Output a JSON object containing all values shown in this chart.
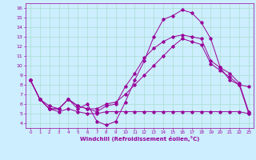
{
  "xlabel": "Windchill (Refroidissement éolien,°C)",
  "bg_color": "#cceeff",
  "grid_color": "#aaddcc",
  "line_color": "#990099",
  "xlim": [
    -0.5,
    23.5
  ],
  "ylim": [
    3.5,
    16.5
  ],
  "xticks": [
    0,
    1,
    2,
    3,
    4,
    5,
    6,
    7,
    8,
    9,
    10,
    11,
    12,
    13,
    14,
    15,
    16,
    17,
    18,
    19,
    20,
    21,
    22,
    23
  ],
  "yticks": [
    4,
    5,
    6,
    7,
    8,
    9,
    10,
    11,
    12,
    13,
    14,
    15,
    16
  ],
  "series": [
    {
      "x": [
        0,
        1,
        2,
        3,
        4,
        5,
        6,
        7,
        8,
        9,
        10,
        11,
        12,
        13,
        14,
        15,
        16,
        17,
        18,
        19,
        20,
        21,
        22,
        23
      ],
      "y": [
        8.5,
        6.5,
        5.5,
        5.5,
        6.5,
        5.5,
        6.0,
        4.2,
        3.8,
        4.2,
        6.2,
        8.5,
        10.5,
        13.0,
        14.8,
        15.2,
        15.8,
        15.5,
        14.5,
        12.8,
        9.8,
        8.5,
        8.0,
        7.8
      ]
    },
    {
      "x": [
        0,
        1,
        2,
        3,
        4,
        5,
        6,
        7,
        8,
        9,
        10,
        11,
        12,
        13,
        14,
        15,
        16,
        17,
        18,
        19,
        20,
        21,
        22,
        23
      ],
      "y": [
        8.5,
        6.5,
        5.8,
        5.5,
        6.5,
        5.8,
        5.5,
        5.2,
        5.8,
        6.0,
        7.8,
        9.2,
        10.8,
        11.8,
        12.5,
        13.0,
        13.2,
        13.0,
        12.8,
        10.5,
        9.8,
        9.2,
        8.2,
        5.2
      ]
    },
    {
      "x": [
        0,
        1,
        2,
        3,
        4,
        5,
        6,
        7,
        8,
        9,
        10,
        11,
        12,
        13,
        14,
        15,
        16,
        17,
        18,
        19,
        20,
        21,
        22,
        23
      ],
      "y": [
        8.5,
        6.5,
        5.5,
        5.2,
        5.5,
        5.2,
        5.0,
        5.0,
        5.2,
        5.2,
        5.2,
        5.2,
        5.2,
        5.2,
        5.2,
        5.2,
        5.2,
        5.2,
        5.2,
        5.2,
        5.2,
        5.2,
        5.2,
        5.0
      ]
    },
    {
      "x": [
        0,
        1,
        2,
        3,
        4,
        5,
        6,
        7,
        8,
        9,
        10,
        11,
        12,
        13,
        14,
        15,
        16,
        17,
        18,
        19,
        20,
        21,
        22,
        23
      ],
      "y": [
        8.5,
        6.5,
        5.5,
        5.5,
        6.5,
        5.8,
        5.5,
        5.5,
        6.0,
        6.2,
        7.0,
        8.0,
        9.0,
        10.0,
        11.0,
        12.0,
        12.8,
        12.5,
        12.2,
        10.2,
        9.5,
        8.8,
        8.0,
        5.0
      ]
    }
  ]
}
